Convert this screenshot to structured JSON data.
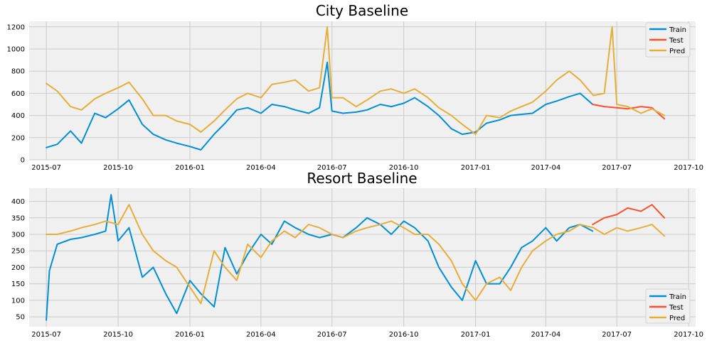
{
  "colors": {
    "train": "#008fd5",
    "test": "#fc4f30",
    "pred": "#e5ae38",
    "plot_bg": "#f0f0f0",
    "grid": "#cbcbcb"
  },
  "chart_data": [
    {
      "type": "line",
      "title": "City Baseline",
      "xlabel": "",
      "ylabel": "",
      "x_axis": "date",
      "xlim": [
        "2015-06-09",
        "2017-10-10"
      ],
      "ylim": [
        0,
        1250
      ],
      "x_ticks": [
        "2015-07",
        "2015-10",
        "2016-01",
        "2016-04",
        "2016-07",
        "2016-10",
        "2017-01",
        "2017-04",
        "2017-07",
        "2017-10"
      ],
      "x_tick_dates": [
        "2015-07-01",
        "2015-10-01",
        "2016-01-01",
        "2016-04-01",
        "2016-07-01",
        "2016-10-01",
        "2017-01-01",
        "2017-04-01",
        "2017-07-01",
        "2017-10-01"
      ],
      "y_ticks": [
        0,
        200,
        400,
        600,
        800,
        1000,
        1200
      ],
      "grid": true,
      "legend": {
        "position": "top-right",
        "entries": [
          "Train",
          "Test",
          "Pred"
        ]
      },
      "series": [
        {
          "name": "Train",
          "x": [
            "2015-07-01",
            "2015-07-15",
            "2015-08-01",
            "2015-08-15",
            "2015-09-01",
            "2015-09-15",
            "2015-10-01",
            "2015-10-15",
            "2015-11-01",
            "2015-11-15",
            "2015-12-01",
            "2015-12-15",
            "2016-01-01",
            "2016-01-15",
            "2016-02-01",
            "2016-02-15",
            "2016-03-01",
            "2016-03-15",
            "2016-04-01",
            "2016-04-15",
            "2016-05-01",
            "2016-05-15",
            "2016-06-01",
            "2016-06-15",
            "2016-06-25",
            "2016-07-01",
            "2016-07-15",
            "2016-08-01",
            "2016-08-15",
            "2016-09-01",
            "2016-09-15",
            "2016-10-01",
            "2016-10-15",
            "2016-11-01",
            "2016-11-15",
            "2016-12-01",
            "2016-12-15",
            "2017-01-01",
            "2017-01-15",
            "2017-02-01",
            "2017-02-15",
            "2017-03-01",
            "2017-03-15",
            "2017-04-01",
            "2017-04-15",
            "2017-05-01",
            "2017-05-15",
            "2017-05-31"
          ],
          "values": [
            110,
            140,
            260,
            150,
            420,
            380,
            460,
            540,
            320,
            230,
            180,
            150,
            120,
            90,
            230,
            330,
            450,
            470,
            420,
            500,
            480,
            450,
            420,
            470,
            880,
            440,
            420,
            430,
            450,
            500,
            480,
            510,
            560,
            480,
            400,
            280,
            230,
            250,
            330,
            360,
            400,
            410,
            420,
            500,
            530,
            570,
            600,
            500
          ]
        },
        {
          "name": "Test",
          "x": [
            "2017-05-31",
            "2017-06-15",
            "2017-07-01",
            "2017-07-15",
            "2017-08-01",
            "2017-08-15",
            "2017-08-31"
          ],
          "values": [
            500,
            480,
            470,
            460,
            480,
            470,
            370
          ]
        },
        {
          "name": "Pred",
          "x": [
            "2015-07-01",
            "2015-07-15",
            "2015-08-01",
            "2015-08-15",
            "2015-09-01",
            "2015-09-15",
            "2015-10-01",
            "2015-10-15",
            "2015-11-01",
            "2015-11-15",
            "2015-12-01",
            "2015-12-15",
            "2016-01-01",
            "2016-01-15",
            "2016-02-01",
            "2016-02-15",
            "2016-03-01",
            "2016-03-15",
            "2016-04-01",
            "2016-04-15",
            "2016-05-01",
            "2016-05-15",
            "2016-06-01",
            "2016-06-15",
            "2016-06-25",
            "2016-07-01",
            "2016-07-15",
            "2016-08-01",
            "2016-08-15",
            "2016-09-01",
            "2016-09-15",
            "2016-10-01",
            "2016-10-15",
            "2016-11-01",
            "2016-11-15",
            "2016-12-01",
            "2016-12-15",
            "2017-01-01",
            "2017-01-15",
            "2017-02-01",
            "2017-02-15",
            "2017-03-01",
            "2017-03-15",
            "2017-04-01",
            "2017-04-15",
            "2017-05-01",
            "2017-05-15",
            "2017-06-01",
            "2017-06-15",
            "2017-06-25",
            "2017-07-01",
            "2017-07-15",
            "2017-08-01",
            "2017-08-15",
            "2017-08-31"
          ],
          "values": [
            690,
            620,
            480,
            450,
            550,
            600,
            650,
            700,
            550,
            400,
            400,
            350,
            320,
            250,
            350,
            450,
            550,
            600,
            560,
            680,
            700,
            720,
            620,
            650,
            1200,
            560,
            560,
            480,
            540,
            620,
            640,
            600,
            640,
            560,
            470,
            400,
            320,
            230,
            400,
            380,
            440,
            480,
            520,
            620,
            720,
            800,
            720,
            580,
            600,
            1200,
            500,
            480,
            420,
            460,
            400
          ]
        }
      ]
    },
    {
      "type": "line",
      "title": "Resort Baseline",
      "xlabel": "",
      "ylabel": "",
      "x_axis": "date",
      "xlim": [
        "2015-06-09",
        "2017-10-10"
      ],
      "ylim": [
        20,
        440
      ],
      "x_ticks": [
        "2015-07",
        "2015-10",
        "2016-01",
        "2016-04",
        "2016-07",
        "2016-10",
        "2017-01",
        "2017-04",
        "2017-07",
        "2017-10"
      ],
      "x_tick_dates": [
        "2015-07-01",
        "2015-10-01",
        "2016-01-01",
        "2016-04-01",
        "2016-07-01",
        "2016-10-01",
        "2017-01-01",
        "2017-04-01",
        "2017-07-01",
        "2017-10-01"
      ],
      "y_ticks": [
        50,
        100,
        150,
        200,
        250,
        300,
        350,
        400
      ],
      "grid": true,
      "legend": {
        "position": "bottom-right",
        "entries": [
          "Train",
          "Test",
          "Pred"
        ]
      },
      "series": [
        {
          "name": "Train",
          "x": [
            "2015-07-01",
            "2015-07-05",
            "2015-07-15",
            "2015-08-01",
            "2015-08-15",
            "2015-09-01",
            "2015-09-15",
            "2015-09-22",
            "2015-10-01",
            "2015-10-15",
            "2015-11-01",
            "2015-11-15",
            "2015-12-01",
            "2015-12-15",
            "2016-01-01",
            "2016-01-15",
            "2016-02-01",
            "2016-02-15",
            "2016-03-01",
            "2016-03-15",
            "2016-04-01",
            "2016-04-15",
            "2016-05-01",
            "2016-05-15",
            "2016-06-01",
            "2016-06-15",
            "2016-07-01",
            "2016-07-15",
            "2016-08-01",
            "2016-08-15",
            "2016-09-01",
            "2016-09-15",
            "2016-10-01",
            "2016-10-15",
            "2016-11-01",
            "2016-11-15",
            "2016-12-01",
            "2016-12-15",
            "2017-01-01",
            "2017-01-15",
            "2017-02-01",
            "2017-02-15",
            "2017-03-01",
            "2017-03-15",
            "2017-04-01",
            "2017-04-15",
            "2017-05-01",
            "2017-05-15",
            "2017-05-31"
          ],
          "values": [
            40,
            190,
            270,
            285,
            290,
            300,
            310,
            420,
            280,
            320,
            170,
            200,
            120,
            60,
            160,
            120,
            80,
            260,
            180,
            240,
            300,
            270,
            340,
            320,
            300,
            290,
            300,
            290,
            320,
            350,
            330,
            300,
            340,
            320,
            280,
            200,
            140,
            100,
            220,
            150,
            150,
            200,
            260,
            280,
            320,
            280,
            320,
            330,
            310
          ]
        },
        {
          "name": "Test",
          "x": [
            "2017-05-31",
            "2017-06-15",
            "2017-07-01",
            "2017-07-15",
            "2017-08-01",
            "2017-08-15",
            "2017-08-31"
          ],
          "values": [
            330,
            350,
            360,
            380,
            370,
            390,
            350
          ]
        },
        {
          "name": "Pred",
          "x": [
            "2015-07-01",
            "2015-07-15",
            "2015-08-01",
            "2015-08-15",
            "2015-09-01",
            "2015-09-15",
            "2015-10-01",
            "2015-10-15",
            "2015-11-01",
            "2015-11-15",
            "2015-12-01",
            "2015-12-15",
            "2016-01-01",
            "2016-01-15",
            "2016-02-01",
            "2016-02-15",
            "2016-03-01",
            "2016-03-15",
            "2016-04-01",
            "2016-04-15",
            "2016-05-01",
            "2016-05-15",
            "2016-06-01",
            "2016-06-15",
            "2016-07-01",
            "2016-07-15",
            "2016-08-01",
            "2016-08-15",
            "2016-09-01",
            "2016-09-15",
            "2016-10-01",
            "2016-10-15",
            "2016-11-01",
            "2016-11-15",
            "2016-12-01",
            "2016-12-15",
            "2017-01-01",
            "2017-01-15",
            "2017-02-01",
            "2017-02-15",
            "2017-03-01",
            "2017-03-15",
            "2017-04-01",
            "2017-04-15",
            "2017-05-01",
            "2017-05-15",
            "2017-06-01",
            "2017-06-15",
            "2017-07-01",
            "2017-07-15",
            "2017-08-01",
            "2017-08-15",
            "2017-08-31"
          ],
          "values": [
            300,
            300,
            310,
            320,
            330,
            340,
            330,
            390,
            300,
            250,
            220,
            200,
            140,
            90,
            250,
            200,
            160,
            270,
            230,
            280,
            310,
            290,
            330,
            320,
            300,
            290,
            310,
            320,
            330,
            340,
            320,
            300,
            300,
            270,
            220,
            150,
            100,
            150,
            170,
            130,
            200,
            250,
            280,
            300,
            310,
            330,
            320,
            300,
            320,
            310,
            320,
            330,
            295
          ]
        }
      ]
    }
  ]
}
